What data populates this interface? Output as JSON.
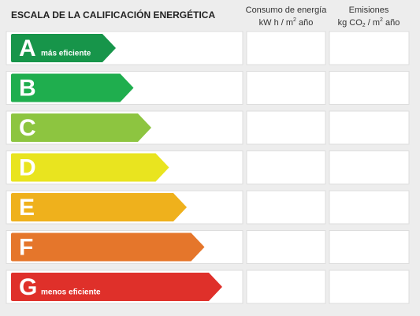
{
  "header": {
    "title": "ESCALA DE LA CALIFICACIÓN ENERGÉTICA",
    "consumption": {
      "line1": "Consumo de energía",
      "unit_a": "kW h  / m",
      "unit_sup": "2",
      "unit_b": " año"
    },
    "emissions": {
      "line1": "Emisiones",
      "unit_a": "kg CO",
      "unit_sub": "2",
      "unit_b": " / m",
      "unit_sup": "2",
      "unit_c": " año"
    }
  },
  "rows": [
    {
      "letter": "A",
      "note": "más eficiente",
      "color": "#17954a"
    },
    {
      "letter": "B",
      "color": "#1fae4e"
    },
    {
      "letter": "C",
      "color": "#8dc540"
    },
    {
      "letter": "D",
      "color": "#e9e41f"
    },
    {
      "letter": "E",
      "color": "#efb11c"
    },
    {
      "letter": "F",
      "color": "#e5762b"
    },
    {
      "letter": "G",
      "note": "menos eficiente",
      "color": "#df302a"
    }
  ]
}
